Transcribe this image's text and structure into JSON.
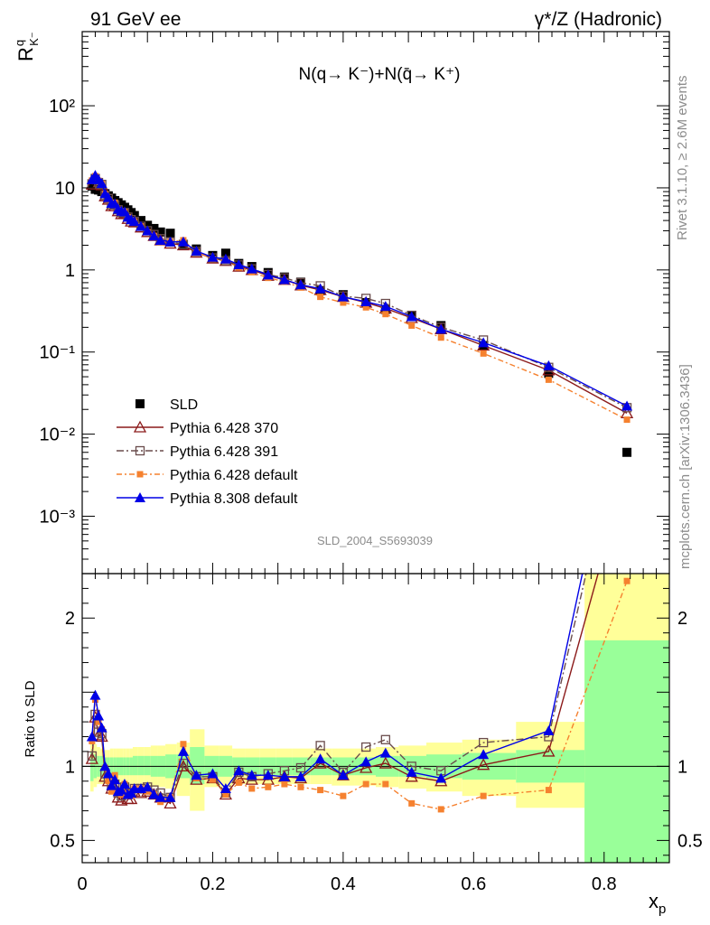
{
  "header": {
    "left": "91 GeV ee",
    "right": "γ*/Z (Hadronic)"
  },
  "side": {
    "rivet": "Rivet 3.1.10, ≥ 2.6M events",
    "mcplots": "mcplots.cern.ch [arXiv:1306.3436]"
  },
  "chart_data": [
    {
      "type": "line",
      "panel": "main",
      "title": "N(q→ K⁻)+N(q̄→ K⁺)",
      "ylabel": "R^q_K⁻",
      "yscale": "log",
      "ylim": [
        0.0002,
        800
      ],
      "xlim": [
        0,
        0.9
      ],
      "ytick_labels": [
        "10⁻³",
        "10⁻²",
        "10⁻¹",
        "1",
        "10",
        "10²"
      ],
      "analysis_label": "SLD_2004_S5693039",
      "legend_position": "bottom-left",
      "x": [
        0.015,
        0.02,
        0.025,
        0.03,
        0.035,
        0.04,
        0.045,
        0.05,
        0.055,
        0.06,
        0.065,
        0.07,
        0.075,
        0.08,
        0.09,
        0.1,
        0.11,
        0.12,
        0.135,
        0.155,
        0.175,
        0.2,
        0.22,
        0.24,
        0.26,
        0.285,
        0.31,
        0.335,
        0.365,
        0.4,
        0.435,
        0.465,
        0.505,
        0.55,
        0.615,
        0.715,
        0.835
      ],
      "series": [
        {
          "name": "SLD",
          "color": "#000000",
          "marker": "filled-square",
          "values": [
            10.5,
            9.6,
            9.4,
            9.0,
            8.5,
            8.0,
            7.5,
            7.0,
            6.6,
            6.2,
            5.8,
            5.4,
            5.0,
            4.6,
            4.0,
            3.5,
            3.2,
            2.9,
            2.8,
            2.0,
            1.8,
            1.5,
            1.6,
            1.2,
            1.1,
            0.93,
            0.82,
            0.71,
            0.56,
            0.5,
            0.4,
            0.33,
            0.28,
            0.21,
            0.12,
            0.055,
            0.006
          ],
          "errors": [
            0.7,
            0.6,
            0.6,
            0.5,
            0.5,
            0.5,
            0.4,
            0.4,
            0.4,
            0.35,
            0.3,
            0.3,
            0.3,
            0.25,
            0.2,
            0.2,
            0.18,
            0.16,
            0.15,
            0.12,
            0.1,
            0.08,
            0.08,
            0.07,
            0.06,
            0.05,
            0.04,
            0.04,
            0.03,
            0.03,
            0.025,
            0.02,
            0.02,
            0.015,
            0.01,
            0.006,
            0.001
          ]
        },
        {
          "name": "Pythia 6.428 370",
          "color": "#8b1a1a",
          "marker": "open-triangle",
          "dash": "",
          "values": [
            11.0,
            12.8,
            11.4,
            10.8,
            7.9,
            7.2,
            6.0,
            6.0,
            5.2,
            4.8,
            4.9,
            4.2,
            3.9,
            3.8,
            3.3,
            2.9,
            2.6,
            2.3,
            2.1,
            2.0,
            1.63,
            1.38,
            1.29,
            1.1,
            1.0,
            0.85,
            0.76,
            0.65,
            0.57,
            0.47,
            0.4,
            0.34,
            0.26,
            0.19,
            0.12,
            0.06,
            0.018
          ]
        },
        {
          "name": "Pythia 6.428 391",
          "color": "#6a4c4c",
          "marker": "open-square",
          "dash": "8,3,2,3",
          "values": [
            11.2,
            13.0,
            11.6,
            11.0,
            8.1,
            7.4,
            6.2,
            6.2,
            5.4,
            5.0,
            5.0,
            4.4,
            4.1,
            3.9,
            3.4,
            3.0,
            2.7,
            2.4,
            2.2,
            2.05,
            1.68,
            1.4,
            1.3,
            1.15,
            1.03,
            0.88,
            0.8,
            0.7,
            0.64,
            0.48,
            0.45,
            0.39,
            0.28,
            0.2,
            0.14,
            0.065,
            0.021
          ]
        },
        {
          "name": "Pythia 6.428 default",
          "color": "#f5812f",
          "marker": "filled-small-square",
          "dash": "6,3,2,3",
          "values": [
            12.3,
            13.9,
            12.2,
            11.2,
            8.4,
            7.2,
            6.2,
            6.6,
            5.4,
            5.0,
            5.1,
            4.4,
            4.0,
            3.9,
            3.4,
            2.9,
            2.6,
            2.2,
            2.2,
            2.3,
            1.66,
            1.36,
            1.3,
            1.07,
            0.94,
            0.8,
            0.72,
            0.61,
            0.47,
            0.4,
            0.35,
            0.29,
            0.21,
            0.15,
            0.096,
            0.046,
            0.015
          ]
        },
        {
          "name": "Pythia 8.308 default",
          "color": "#0000e6",
          "marker": "filled-triangle",
          "dash": "",
          "values": [
            12.6,
            14.2,
            12.6,
            11.3,
            8.5,
            7.6,
            6.5,
            6.4,
            5.5,
            5.2,
            5.1,
            4.4,
            4.1,
            3.9,
            3.4,
            3.0,
            2.6,
            2.3,
            2.2,
            2.2,
            1.7,
            1.43,
            1.36,
            1.16,
            1.03,
            0.87,
            0.76,
            0.66,
            0.59,
            0.47,
            0.41,
            0.36,
            0.27,
            0.19,
            0.13,
            0.068,
            0.022
          ]
        }
      ]
    },
    {
      "type": "line",
      "panel": "ratio",
      "ylabel": "Ratio to SLD",
      "xlabel": "x_p",
      "ylim": [
        0.35,
        2.3
      ],
      "xlim": [
        0,
        0.9
      ],
      "ytick_labels": [
        "0.5",
        "1",
        "2"
      ],
      "xtick_labels": [
        "0",
        "0.2",
        "0.4",
        "0.6",
        "0.8"
      ],
      "reference_line": 1,
      "x": [
        0.015,
        0.02,
        0.025,
        0.03,
        0.035,
        0.04,
        0.045,
        0.05,
        0.055,
        0.06,
        0.065,
        0.07,
        0.075,
        0.08,
        0.09,
        0.1,
        0.11,
        0.12,
        0.135,
        0.155,
        0.175,
        0.2,
        0.22,
        0.24,
        0.26,
        0.285,
        0.31,
        0.335,
        0.365,
        0.4,
        0.435,
        0.465,
        0.505,
        0.55,
        0.615,
        0.715,
        0.835
      ],
      "bands": [
        {
          "x0": 0.0125,
          "x1": 0.0175,
          "g": [
            0.9,
            1.1
          ],
          "y": [
            0.83,
            1.18
          ]
        },
        {
          "x0": 0.0175,
          "x1": 0.0225,
          "g": [
            0.92,
            1.08
          ],
          "y": [
            0.86,
            1.15
          ]
        },
        {
          "x0": 0.0225,
          "x1": 0.0275,
          "g": [
            0.93,
            1.07
          ],
          "y": [
            0.88,
            1.13
          ]
        },
        {
          "x0": 0.0275,
          "x1": 0.0325,
          "g": [
            0.93,
            1.07
          ],
          "y": [
            0.88,
            1.12
          ]
        },
        {
          "x0": 0.0325,
          "x1": 0.0375,
          "g": [
            0.94,
            1.06
          ],
          "y": [
            0.89,
            1.11
          ]
        },
        {
          "x0": 0.0375,
          "x1": 0.0425,
          "g": [
            0.94,
            1.06
          ],
          "y": [
            0.89,
            1.11
          ]
        },
        {
          "x0": 0.0425,
          "x1": 0.0475,
          "g": [
            0.94,
            1.06
          ],
          "y": [
            0.88,
            1.12
          ]
        },
        {
          "x0": 0.0475,
          "x1": 0.0525,
          "g": [
            0.94,
            1.06
          ],
          "y": [
            0.88,
            1.12
          ]
        },
        {
          "x0": 0.0525,
          "x1": 0.0575,
          "g": [
            0.94,
            1.06
          ],
          "y": [
            0.88,
            1.12
          ]
        },
        {
          "x0": 0.0575,
          "x1": 0.0625,
          "g": [
            0.94,
            1.06
          ],
          "y": [
            0.88,
            1.12
          ]
        },
        {
          "x0": 0.0625,
          "x1": 0.0675,
          "g": [
            0.94,
            1.06
          ],
          "y": [
            0.88,
            1.12
          ]
        },
        {
          "x0": 0.0675,
          "x1": 0.0725,
          "g": [
            0.94,
            1.06
          ],
          "y": [
            0.88,
            1.12
          ]
        },
        {
          "x0": 0.0725,
          "x1": 0.0775,
          "g": [
            0.94,
            1.06
          ],
          "y": [
            0.88,
            1.12
          ]
        },
        {
          "x0": 0.0775,
          "x1": 0.085,
          "g": [
            0.94,
            1.07
          ],
          "y": [
            0.88,
            1.13
          ]
        },
        {
          "x0": 0.085,
          "x1": 0.095,
          "g": [
            0.94,
            1.07
          ],
          "y": [
            0.88,
            1.13
          ]
        },
        {
          "x0": 0.095,
          "x1": 0.105,
          "g": [
            0.94,
            1.07
          ],
          "y": [
            0.87,
            1.13
          ]
        },
        {
          "x0": 0.105,
          "x1": 0.115,
          "g": [
            0.93,
            1.07
          ],
          "y": [
            0.86,
            1.14
          ]
        },
        {
          "x0": 0.115,
          "x1": 0.1275,
          "g": [
            0.93,
            1.07
          ],
          "y": [
            0.86,
            1.14
          ]
        },
        {
          "x0": 0.1275,
          "x1": 0.145,
          "g": [
            0.92,
            1.08
          ],
          "y": [
            0.85,
            1.15
          ]
        },
        {
          "x0": 0.145,
          "x1": 0.165,
          "g": [
            0.92,
            1.08
          ],
          "y": [
            0.8,
            1.16
          ]
        },
        {
          "x0": 0.165,
          "x1": 0.1875,
          "g": [
            0.88,
            1.13
          ],
          "y": [
            0.7,
            1.25
          ]
        },
        {
          "x0": 0.1875,
          "x1": 0.21,
          "g": [
            0.93,
            1.07
          ],
          "y": [
            0.86,
            1.14
          ]
        },
        {
          "x0": 0.21,
          "x1": 0.23,
          "g": [
            0.93,
            1.07
          ],
          "y": [
            0.86,
            1.14
          ]
        },
        {
          "x0": 0.23,
          "x1": 0.25,
          "g": [
            0.94,
            1.06
          ],
          "y": [
            0.88,
            1.12
          ]
        },
        {
          "x0": 0.25,
          "x1": 0.2725,
          "g": [
            0.94,
            1.06
          ],
          "y": [
            0.88,
            1.12
          ]
        },
        {
          "x0": 0.2725,
          "x1": 0.2975,
          "g": [
            0.94,
            1.06
          ],
          "y": [
            0.88,
            1.12
          ]
        },
        {
          "x0": 0.2975,
          "x1": 0.3225,
          "g": [
            0.94,
            1.06
          ],
          "y": [
            0.88,
            1.12
          ]
        },
        {
          "x0": 0.3225,
          "x1": 0.35,
          "g": [
            0.94,
            1.06
          ],
          "y": [
            0.88,
            1.12
          ]
        },
        {
          "x0": 0.35,
          "x1": 0.3825,
          "g": [
            0.94,
            1.06
          ],
          "y": [
            0.88,
            1.12
          ]
        },
        {
          "x0": 0.3825,
          "x1": 0.4175,
          "g": [
            0.94,
            1.06
          ],
          "y": [
            0.87,
            1.12
          ]
        },
        {
          "x0": 0.4175,
          "x1": 0.45,
          "g": [
            0.94,
            1.06
          ],
          "y": [
            0.87,
            1.12
          ]
        },
        {
          "x0": 0.45,
          "x1": 0.485,
          "g": [
            0.93,
            1.07
          ],
          "y": [
            0.86,
            1.13
          ]
        },
        {
          "x0": 0.485,
          "x1": 0.5275,
          "g": [
            0.93,
            1.07
          ],
          "y": [
            0.85,
            1.14
          ]
        },
        {
          "x0": 0.5275,
          "x1": 0.5825,
          "g": [
            0.92,
            1.08
          ],
          "y": [
            0.83,
            1.16
          ]
        },
        {
          "x0": 0.5825,
          "x1": 0.665,
          "g": [
            0.91,
            1.09
          ],
          "y": [
            0.8,
            1.18
          ]
        },
        {
          "x0": 0.665,
          "x1": 0.77,
          "g": [
            0.89,
            1.11
          ],
          "y": [
            0.72,
            1.3
          ]
        },
        {
          "x0": 0.77,
          "x1": 0.9,
          "g": [
            0.35,
            1.85
          ],
          "y": [
            0.35,
            2.3
          ]
        }
      ],
      "series": [
        {
          "name": "Pythia 6.428 370",
          "color": "#8b1a1a",
          "marker": "open-triangle",
          "dash": "",
          "values": [
            1.05,
            1.33,
            1.21,
            1.2,
            0.93,
            0.9,
            0.85,
            0.86,
            0.79,
            0.77,
            0.84,
            0.78,
            0.78,
            0.83,
            0.82,
            0.83,
            0.81,
            0.79,
            0.75,
            1.0,
            0.91,
            0.92,
            0.81,
            0.92,
            0.91,
            0.91,
            0.93,
            0.92,
            1.02,
            0.94,
            0.99,
            1.02,
            0.93,
            0.9,
            1.01,
            1.1,
            3.0
          ]
        },
        {
          "name": "Pythia 6.428 391",
          "color": "#6a4c4c",
          "marker": "open-square",
          "dash": "8,3,2,3",
          "values": [
            1.07,
            1.35,
            1.23,
            1.22,
            0.95,
            0.92,
            0.87,
            0.88,
            0.82,
            0.8,
            0.86,
            0.81,
            0.82,
            0.85,
            0.85,
            0.86,
            0.84,
            0.82,
            0.79,
            1.02,
            0.93,
            0.93,
            0.82,
            0.96,
            0.93,
            0.95,
            0.97,
            0.99,
            1.14,
            0.96,
            1.13,
            1.18,
            1.0,
            0.97,
            1.16,
            1.2,
            3.5
          ]
        },
        {
          "name": "Pythia 6.428 default",
          "color": "#f5812f",
          "marker": "filled-small-square",
          "dash": "6,3,2,3",
          "values": [
            1.17,
            1.45,
            1.3,
            1.25,
            0.99,
            0.9,
            0.83,
            0.94,
            0.82,
            0.81,
            0.88,
            0.82,
            0.8,
            0.85,
            0.85,
            0.83,
            0.81,
            0.76,
            0.79,
            1.15,
            0.92,
            0.91,
            0.81,
            0.89,
            0.85,
            0.86,
            0.88,
            0.86,
            0.84,
            0.8,
            0.88,
            0.88,
            0.75,
            0.71,
            0.8,
            0.84,
            2.25
          ]
        },
        {
          "name": "Pythia 8.308 default",
          "color": "#0000e6",
          "marker": "filled-triangle",
          "dash": "",
          "values": [
            1.2,
            1.48,
            1.34,
            1.26,
            1.0,
            0.95,
            0.87,
            0.91,
            0.83,
            0.84,
            0.88,
            0.81,
            0.82,
            0.85,
            0.85,
            0.86,
            0.81,
            0.79,
            0.79,
            1.1,
            0.94,
            0.95,
            0.85,
            0.97,
            0.94,
            0.94,
            0.93,
            0.93,
            1.05,
            0.94,
            1.03,
            1.09,
            0.96,
            0.92,
            1.08,
            1.24,
            3.7
          ]
        }
      ]
    }
  ]
}
